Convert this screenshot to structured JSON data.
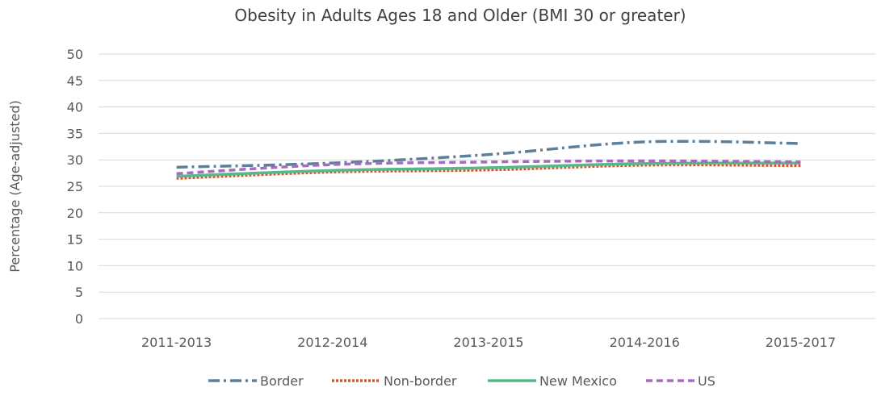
{
  "chart_data": {
    "type": "line",
    "title": "Obesity in Adults Ages 18 and Older  (BMI 30 or greater)",
    "ylabel": "Percentage (Age-adjusted)",
    "xlabel": "",
    "categories": [
      "2011-2013",
      "2012-2014",
      "2013-2015",
      "2014-2016",
      "2015-2017"
    ],
    "ylim": [
      0,
      50
    ],
    "yticks": [
      0,
      5,
      10,
      15,
      20,
      25,
      30,
      35,
      40,
      45,
      50
    ],
    "grid": true,
    "legend_position": "bottom",
    "series": [
      {
        "name": "Border",
        "values": [
          28.6,
          29.4,
          31.0,
          33.4,
          33.1
        ],
        "color": "#5e7f99",
        "dash": "dash-dot"
      },
      {
        "name": "Non-border",
        "values": [
          26.5,
          27.7,
          28.1,
          29.0,
          28.9
        ],
        "color": "#d4582f",
        "dash": "dotted"
      },
      {
        "name": "New Mexico",
        "values": [
          26.9,
          28.0,
          28.5,
          29.3,
          29.4
        ],
        "color": "#55b98a",
        "dash": "solid"
      },
      {
        "name": "US",
        "values": [
          27.4,
          29.1,
          29.6,
          29.8,
          29.6
        ],
        "color": "#a66bbf",
        "dash": "dashed"
      }
    ]
  }
}
